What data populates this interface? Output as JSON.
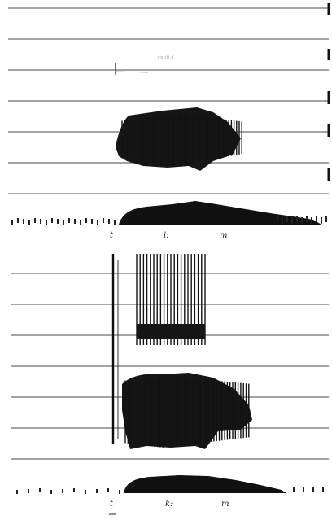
{
  "upper_panel": {
    "faint_label": "conti.t",
    "segment_labels": [
      "t",
      "i:",
      "m"
    ]
  },
  "lower_panel": {
    "segment_labels": [
      "t",
      "k:",
      "m"
    ]
  }
}
